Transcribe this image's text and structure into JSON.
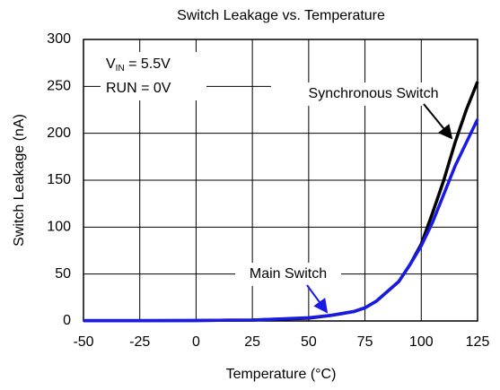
{
  "chart_data": {
    "type": "line",
    "title": "Switch Leakage vs. Temperature",
    "xlabel": "Temperature (°C)",
    "ylabel": "Switch Leakage (nA)",
    "x": [
      -50,
      -25,
      0,
      25,
      50,
      60,
      70,
      75,
      80,
      90,
      95,
      100,
      105,
      110,
      115,
      120,
      125
    ],
    "series": [
      {
        "name": "Synchronous Switch",
        "color": "#000000",
        "values": [
          0.3,
          0.4,
          0.5,
          1,
          3,
          6,
          10,
          14,
          21,
          42,
          60,
          82,
          115,
          150,
          190,
          225,
          255
        ]
      },
      {
        "name": "Main Switch",
        "color": "#1a1ae6",
        "values": [
          0.3,
          0.4,
          0.5,
          1,
          3.5,
          6,
          10,
          14,
          21,
          42,
          60,
          80,
          105,
          135,
          165,
          190,
          215
        ]
      }
    ],
    "annotations": [
      {
        "text": "V",
        "sub": "IN",
        "rest": " = 5.5V"
      },
      {
        "text": "RUN = 0V"
      }
    ],
    "xlim": [
      -50,
      125
    ],
    "xticks": [
      -50,
      -25,
      0,
      25,
      50,
      75,
      100,
      125
    ],
    "ylim": [
      0,
      300
    ],
    "yticks": [
      0,
      50,
      100,
      150,
      200,
      250,
      300
    ],
    "grid": true
  }
}
